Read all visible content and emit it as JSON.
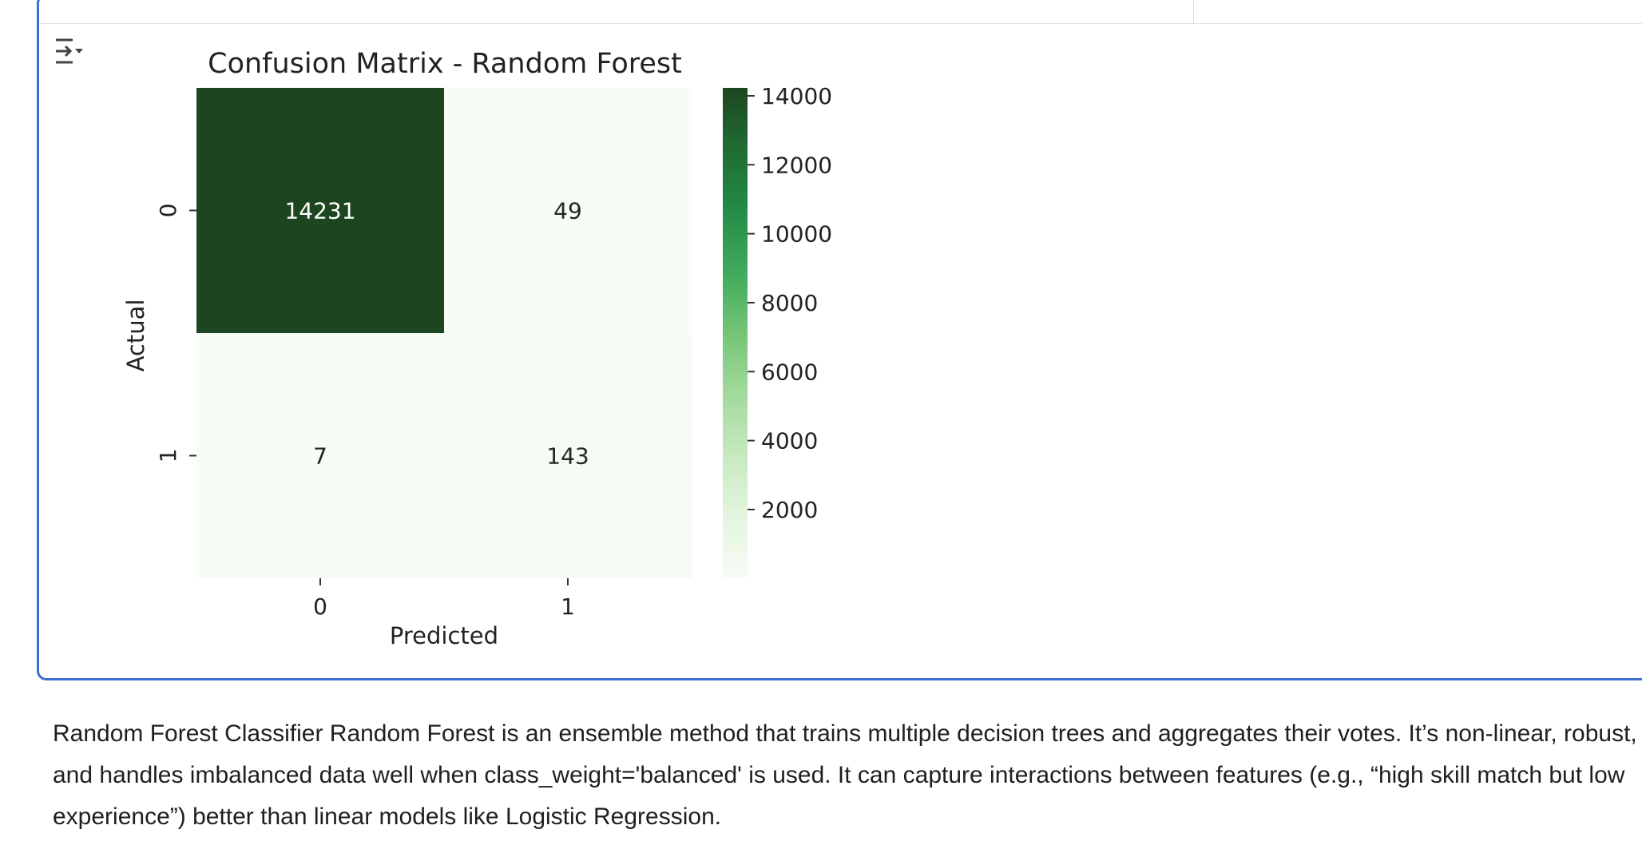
{
  "output_toggle": {
    "icon": "output-collapse-icon"
  },
  "chart_data": {
    "type": "heatmap",
    "title": "Confusion Matrix - Random Forest",
    "xlabel": "Predicted",
    "ylabel": "Actual",
    "x_categories": [
      "0",
      "1"
    ],
    "y_categories": [
      "0",
      "1"
    ],
    "values": [
      [
        14231,
        49
      ],
      [
        7,
        143
      ]
    ],
    "colormap": "Greens",
    "color_low": "#f7fcf5",
    "color_high": "#1d4620",
    "colorbar": {
      "range": [
        7,
        14231
      ],
      "ticks": [
        "2000",
        "4000",
        "6000",
        "8000",
        "10000",
        "12000",
        "14000"
      ]
    }
  },
  "markdown": {
    "text": "Random Forest Classifier Random Forest is an ensemble method that trains multiple decision trees and aggregates their votes. It’s non-linear, robust, and handles imbalanced data well when class_weight='balanced' is used. It can capture interactions between features (e.g., “high skill match but low experience”) better than linear models like Logistic Regression."
  }
}
